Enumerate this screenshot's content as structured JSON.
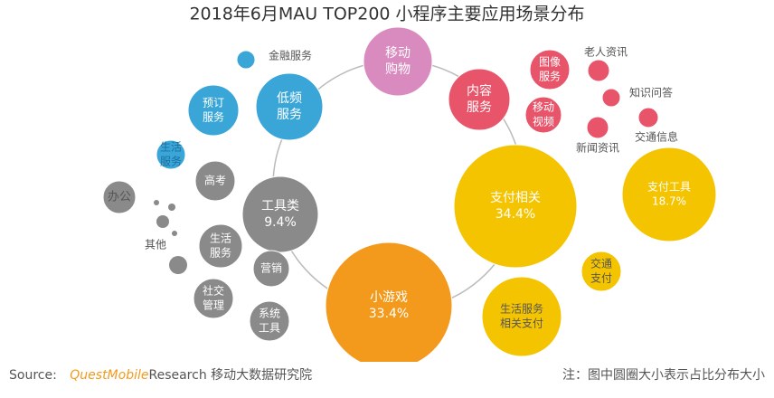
{
  "title": "2018年6月MAU TOP200 小程序主要应用场景分布",
  "nodes": [
    {
      "lines": [
        "移动",
        "购物"
      ]
    },
    {
      "lines": [
        "内容",
        "服务"
      ]
    },
    {
      "lines": [
        "低频",
        "服务"
      ]
    },
    {
      "lines": [
        "支付相关",
        "34.4%"
      ]
    },
    {
      "lines": [
        "小游戏",
        "33.4%"
      ]
    },
    {
      "lines": [
        "工具类",
        "9.4%"
      ]
    },
    {
      "lines": [
        "金融服务"
      ]
    },
    {
      "lines": [
        "预订",
        "服务"
      ]
    },
    {
      "lines": [
        "生活",
        "服务"
      ]
    },
    {
      "lines": [
        "高考"
      ]
    },
    {
      "lines": [
        "办公"
      ]
    },
    {
      "lines": [
        "其他"
      ]
    },
    {
      "lines": [
        "生活",
        "服务"
      ]
    },
    {
      "lines": [
        "营销"
      ]
    },
    {
      "lines": [
        "社交",
        "管理"
      ]
    },
    {
      "lines": [
        "系统",
        "工具"
      ]
    },
    {
      "lines": [
        "图像",
        "服务"
      ]
    },
    {
      "lines": [
        "老人资讯"
      ]
    },
    {
      "lines": [
        "知识问答"
      ]
    },
    {
      "lines": [
        "移动",
        "视频"
      ]
    },
    {
      "lines": [
        "新闻资讯"
      ]
    },
    {
      "lines": [
        "交通信息"
      ]
    },
    {
      "lines": [
        "支付工具",
        "18.7%"
      ]
    },
    {
      "lines": [
        "交通",
        "支付"
      ]
    },
    {
      "lines": [
        "生活服务",
        "相关支付"
      ]
    }
  ],
  "footer": {
    "source_label": "Source:",
    "brand": "QuestMobile",
    "org": "Research 移动大数据研究院",
    "note": "注：图中圆圈大小表示占比分布大小"
  }
}
